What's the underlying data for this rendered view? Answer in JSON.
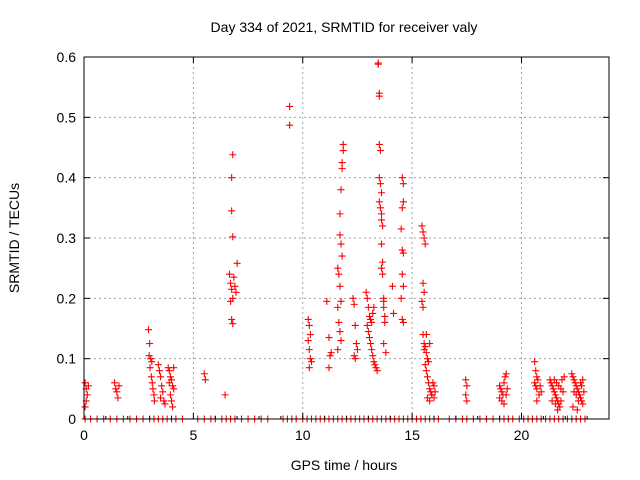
{
  "chart_data": {
    "type": "scatter",
    "title": "Day 334 of 2021, SRMTID for receiver valy",
    "xlabel": "GPS time / hours",
    "ylabel": "SRMTID / TECUs",
    "xlim": [
      0,
      24
    ],
    "ylim": [
      0,
      0.6
    ],
    "x_ticks": [
      0,
      5,
      10,
      15,
      20
    ],
    "x_tick_labels": [
      "0",
      "5",
      "10",
      "15",
      "20"
    ],
    "y_ticks": [
      0,
      0.1,
      0.2,
      0.3,
      0.4,
      0.5,
      0.6
    ],
    "y_tick_labels": [
      "0",
      "0.1",
      "0.2",
      "0.3",
      "0.4",
      "0.5",
      "0.6"
    ],
    "grid": true,
    "marker": "plus",
    "series": [
      {
        "name": "SRMTID",
        "color": "#ff0000",
        "points": [
          [
            0.05,
            0.06
          ],
          [
            0.1,
            0.05
          ],
          [
            0.15,
            0.04
          ],
          [
            0.05,
            0.02
          ],
          [
            0.1,
            0.03
          ],
          [
            0.2,
            0.055
          ],
          [
            1.4,
            0.06
          ],
          [
            1.45,
            0.05
          ],
          [
            1.5,
            0.045
          ],
          [
            1.55,
            0.035
          ],
          [
            1.6,
            0.055
          ],
          [
            2.95,
            0.148
          ],
          [
            3.0,
            0.125
          ],
          [
            2.98,
            0.105
          ],
          [
            3.05,
            0.1
          ],
          [
            3.1,
            0.095
          ],
          [
            3.02,
            0.085
          ],
          [
            3.08,
            0.07
          ],
          [
            3.12,
            0.06
          ],
          [
            3.15,
            0.05
          ],
          [
            3.2,
            0.04
          ],
          [
            3.22,
            0.03
          ],
          [
            3.4,
            0.09
          ],
          [
            3.45,
            0.08
          ],
          [
            3.5,
            0.07
          ],
          [
            3.55,
            0.055
          ],
          [
            3.6,
            0.045
          ],
          [
            3.5,
            0.035
          ],
          [
            3.65,
            0.03
          ],
          [
            3.7,
            0.025
          ],
          [
            3.85,
            0.085
          ],
          [
            3.9,
            0.08
          ],
          [
            3.95,
            0.07
          ],
          [
            4.0,
            0.065
          ],
          [
            3.9,
            0.06
          ],
          [
            4.05,
            0.055
          ],
          [
            4.1,
            0.05
          ],
          [
            3.95,
            0.04
          ],
          [
            4.0,
            0.03
          ],
          [
            4.05,
            0.02
          ],
          [
            4.1,
            0.085
          ],
          [
            5.5,
            0.075
          ],
          [
            5.55,
            0.065
          ],
          [
            6.45,
            0.04
          ],
          [
            6.65,
            0.24
          ],
          [
            6.7,
            0.225
          ],
          [
            6.75,
            0.215
          ],
          [
            6.8,
            0.2
          ],
          [
            6.7,
            0.195
          ],
          [
            6.85,
            0.235
          ],
          [
            6.9,
            0.22
          ],
          [
            6.95,
            0.21
          ],
          [
            6.75,
            0.165
          ],
          [
            6.8,
            0.158
          ],
          [
            6.8,
            0.302
          ],
          [
            6.75,
            0.345
          ],
          [
            6.75,
            0.4
          ],
          [
            6.8,
            0.438
          ],
          [
            7.0,
            0.258
          ],
          [
            9.4,
            0.518
          ],
          [
            9.4,
            0.487
          ],
          [
            10.25,
            0.165
          ],
          [
            10.3,
            0.155
          ],
          [
            10.35,
            0.14
          ],
          [
            10.25,
            0.13
          ],
          [
            10.3,
            0.115
          ],
          [
            10.35,
            0.1
          ],
          [
            10.4,
            0.095
          ],
          [
            10.3,
            0.085
          ],
          [
            11.1,
            0.195
          ],
          [
            11.2,
            0.135
          ],
          [
            11.25,
            0.105
          ],
          [
            11.3,
            0.11
          ],
          [
            11.2,
            0.085
          ],
          [
            11.6,
            0.25
          ],
          [
            11.65,
            0.24
          ],
          [
            11.7,
            0.22
          ],
          [
            11.75,
            0.195
          ],
          [
            11.6,
            0.185
          ],
          [
            11.65,
            0.16
          ],
          [
            11.7,
            0.145
          ],
          [
            11.75,
            0.13
          ],
          [
            11.6,
            0.115
          ],
          [
            11.7,
            0.34
          ],
          [
            11.75,
            0.38
          ],
          [
            11.8,
            0.415
          ],
          [
            11.8,
            0.425
          ],
          [
            11.85,
            0.445
          ],
          [
            11.85,
            0.455
          ],
          [
            11.7,
            0.305
          ],
          [
            11.75,
            0.29
          ],
          [
            11.8,
            0.27
          ],
          [
            12.3,
            0.2
          ],
          [
            12.35,
            0.19
          ],
          [
            12.4,
            0.155
          ],
          [
            12.45,
            0.125
          ],
          [
            12.5,
            0.115
          ],
          [
            12.35,
            0.105
          ],
          [
            12.4,
            0.1
          ],
          [
            12.9,
            0.21
          ],
          [
            12.95,
            0.2
          ],
          [
            13.0,
            0.185
          ],
          [
            13.05,
            0.17
          ],
          [
            13.1,
            0.165
          ],
          [
            13.15,
            0.16
          ],
          [
            12.95,
            0.155
          ],
          [
            13.0,
            0.145
          ],
          [
            13.05,
            0.135
          ],
          [
            13.1,
            0.125
          ],
          [
            13.15,
            0.115
          ],
          [
            13.2,
            0.105
          ],
          [
            13.25,
            0.095
          ],
          [
            13.3,
            0.09
          ],
          [
            13.35,
            0.085
          ],
          [
            13.4,
            0.08
          ],
          [
            13.2,
            0.175
          ],
          [
            13.25,
            0.185
          ],
          [
            13.45,
            0.59
          ],
          [
            13.45,
            0.588
          ],
          [
            13.5,
            0.54
          ],
          [
            13.5,
            0.535
          ],
          [
            13.5,
            0.455
          ],
          [
            13.55,
            0.445
          ],
          [
            13.5,
            0.4
          ],
          [
            13.55,
            0.39
          ],
          [
            13.6,
            0.375
          ],
          [
            13.5,
            0.36
          ],
          [
            13.55,
            0.35
          ],
          [
            13.6,
            0.34
          ],
          [
            13.6,
            0.33
          ],
          [
            13.65,
            0.32
          ],
          [
            13.6,
            0.29
          ],
          [
            13.65,
            0.26
          ],
          [
            13.6,
            0.25
          ],
          [
            13.65,
            0.24
          ],
          [
            13.7,
            0.2
          ],
          [
            13.7,
            0.195
          ],
          [
            13.7,
            0.185
          ],
          [
            13.75,
            0.17
          ],
          [
            13.75,
            0.16
          ],
          [
            13.7,
            0.125
          ],
          [
            13.8,
            0.11
          ],
          [
            14.1,
            0.22
          ],
          [
            14.15,
            0.175
          ],
          [
            14.55,
            0.4
          ],
          [
            14.6,
            0.39
          ],
          [
            14.6,
            0.36
          ],
          [
            14.55,
            0.35
          ],
          [
            14.5,
            0.315
          ],
          [
            14.55,
            0.28
          ],
          [
            14.6,
            0.275
          ],
          [
            14.55,
            0.24
          ],
          [
            14.6,
            0.22
          ],
          [
            14.5,
            0.2
          ],
          [
            14.55,
            0.165
          ],
          [
            14.6,
            0.16
          ],
          [
            15.45,
            0.32
          ],
          [
            15.5,
            0.31
          ],
          [
            15.55,
            0.3
          ],
          [
            15.6,
            0.29
          ],
          [
            15.5,
            0.225
          ],
          [
            15.55,
            0.21
          ],
          [
            15.45,
            0.195
          ],
          [
            15.5,
            0.185
          ],
          [
            15.5,
            0.14
          ],
          [
            15.55,
            0.125
          ],
          [
            15.6,
            0.12
          ],
          [
            15.55,
            0.115
          ],
          [
            15.65,
            0.11
          ],
          [
            15.7,
            0.1
          ],
          [
            15.75,
            0.095
          ],
          [
            15.6,
            0.09
          ],
          [
            15.65,
            0.08
          ],
          [
            15.7,
            0.07
          ],
          [
            15.75,
            0.06
          ],
          [
            15.8,
            0.05
          ],
          [
            15.85,
            0.045
          ],
          [
            15.9,
            0.04
          ],
          [
            15.95,
            0.06
          ],
          [
            16.0,
            0.055
          ],
          [
            16.05,
            0.045
          ],
          [
            15.7,
            0.035
          ],
          [
            15.8,
            0.03
          ],
          [
            15.9,
            0.04
          ],
          [
            16.0,
            0.035
          ],
          [
            15.65,
            0.14
          ],
          [
            15.8,
            0.125
          ],
          [
            17.45,
            0.065
          ],
          [
            17.5,
            0.055
          ],
          [
            17.45,
            0.04
          ],
          [
            17.5,
            0.03
          ],
          [
            19.0,
            0.055
          ],
          [
            19.05,
            0.05
          ],
          [
            19.1,
            0.045
          ],
          [
            19.15,
            0.04
          ],
          [
            19.2,
            0.06
          ],
          [
            19.25,
            0.07
          ],
          [
            19.3,
            0.075
          ],
          [
            19.0,
            0.035
          ],
          [
            19.1,
            0.03
          ],
          [
            19.2,
            0.025
          ],
          [
            19.3,
            0.04
          ],
          [
            19.35,
            0.05
          ],
          [
            20.6,
            0.095
          ],
          [
            20.65,
            0.08
          ],
          [
            20.7,
            0.07
          ],
          [
            20.75,
            0.065
          ],
          [
            20.6,
            0.06
          ],
          [
            20.65,
            0.055
          ],
          [
            20.7,
            0.05
          ],
          [
            20.8,
            0.04
          ],
          [
            20.85,
            0.055
          ],
          [
            20.9,
            0.045
          ],
          [
            20.7,
            0.03
          ],
          [
            21.3,
            0.065
          ],
          [
            21.35,
            0.06
          ],
          [
            21.4,
            0.055
          ],
          [
            21.45,
            0.05
          ],
          [
            21.5,
            0.045
          ],
          [
            21.55,
            0.04
          ],
          [
            21.6,
            0.035
          ],
          [
            21.65,
            0.03
          ],
          [
            21.7,
            0.025
          ],
          [
            21.75,
            0.02
          ],
          [
            21.5,
            0.065
          ],
          [
            21.6,
            0.06
          ],
          [
            21.7,
            0.055
          ],
          [
            21.8,
            0.05
          ],
          [
            21.9,
            0.045
          ],
          [
            21.4,
            0.03
          ],
          [
            21.55,
            0.025
          ],
          [
            21.8,
            0.03
          ],
          [
            21.85,
            0.065
          ],
          [
            21.95,
            0.07
          ],
          [
            21.65,
            0.015
          ],
          [
            22.3,
            0.075
          ],
          [
            22.35,
            0.07
          ],
          [
            22.4,
            0.065
          ],
          [
            22.45,
            0.06
          ],
          [
            22.5,
            0.055
          ],
          [
            22.55,
            0.05
          ],
          [
            22.6,
            0.045
          ],
          [
            22.65,
            0.04
          ],
          [
            22.7,
            0.035
          ],
          [
            22.75,
            0.03
          ],
          [
            22.8,
            0.025
          ],
          [
            22.4,
            0.045
          ],
          [
            22.5,
            0.04
          ],
          [
            22.6,
            0.03
          ],
          [
            22.7,
            0.06
          ],
          [
            22.8,
            0.065
          ],
          [
            22.35,
            0.02
          ],
          [
            22.55,
            0.015
          ],
          [
            22.75,
            0.055
          ],
          [
            22.85,
            0.045
          ]
        ]
      }
    ],
    "baseline_zero_x": [
      0.05,
      0.3,
      0.6,
      0.9,
      1.2,
      1.5,
      1.8,
      2.1,
      2.4,
      2.7,
      3.0,
      3.2,
      3.4,
      3.6,
      3.8,
      4.0,
      4.2,
      4.5,
      5.2,
      5.5,
      5.8,
      6.0,
      6.3,
      6.5,
      6.7,
      6.9,
      7.2,
      7.5,
      7.8,
      8.1,
      8.4,
      9.1,
      9.3,
      9.5,
      9.7,
      10.0,
      10.2,
      10.4,
      10.6,
      10.8,
      11.0,
      11.2,
      11.4,
      11.6,
      11.8,
      12.0,
      12.2,
      12.4,
      12.6,
      12.8,
      13.0,
      13.2,
      13.4,
      13.6,
      13.8,
      14.0,
      14.2,
      14.4,
      14.6,
      14.8,
      15.0,
      15.2,
      15.4,
      15.6,
      15.8,
      16.0,
      16.2,
      16.7,
      17.0,
      17.3,
      17.5,
      17.8,
      18.1,
      18.4,
      18.7,
      19.0,
      19.2,
      19.4,
      19.6,
      19.9,
      20.1,
      20.3,
      20.5,
      20.7,
      20.9,
      21.1,
      21.3,
      21.5,
      21.7,
      21.9,
      22.1,
      22.3,
      22.5,
      22.7,
      22.9
    ]
  }
}
